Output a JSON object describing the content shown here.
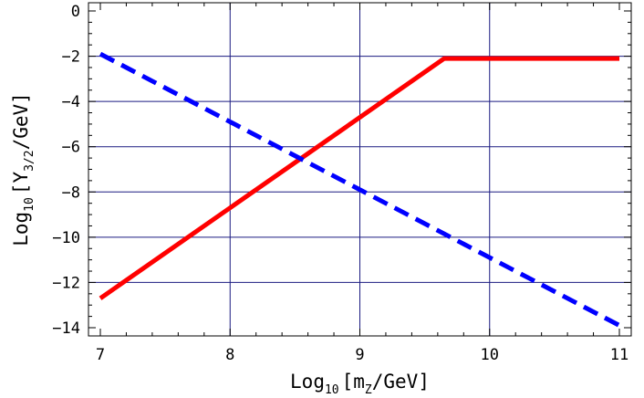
{
  "chart_data": {
    "type": "line",
    "title": "",
    "xlabel": {
      "base": "Log",
      "sub": "10",
      "open": "[m",
      "sub2": "Z",
      "close": "/GeV]"
    },
    "ylabel": {
      "base": "Log",
      "sub": "10",
      "open": "[Y",
      "sub2": "3/2",
      "close": "/GeV]"
    },
    "xlim": [
      7,
      11
    ],
    "ylim": [
      -14,
      0
    ],
    "xticks": [
      7,
      8,
      9,
      10,
      11
    ],
    "yticks": [
      0,
      -2,
      -4,
      -6,
      -8,
      -10,
      -12,
      -14
    ],
    "grid": true,
    "series": [
      {
        "style": "solid",
        "color": "#ff0000",
        "x": [
          7,
          9.65,
          11
        ],
        "y": [
          -12.7,
          -2.1,
          -2.1
        ]
      },
      {
        "style": "dashed",
        "color": "#0000ff",
        "x": [
          7,
          11
        ],
        "y": [
          -1.9,
          -13.9
        ]
      }
    ],
    "colors": {
      "grid": "#1a1a80",
      "frame": "#000000"
    }
  }
}
